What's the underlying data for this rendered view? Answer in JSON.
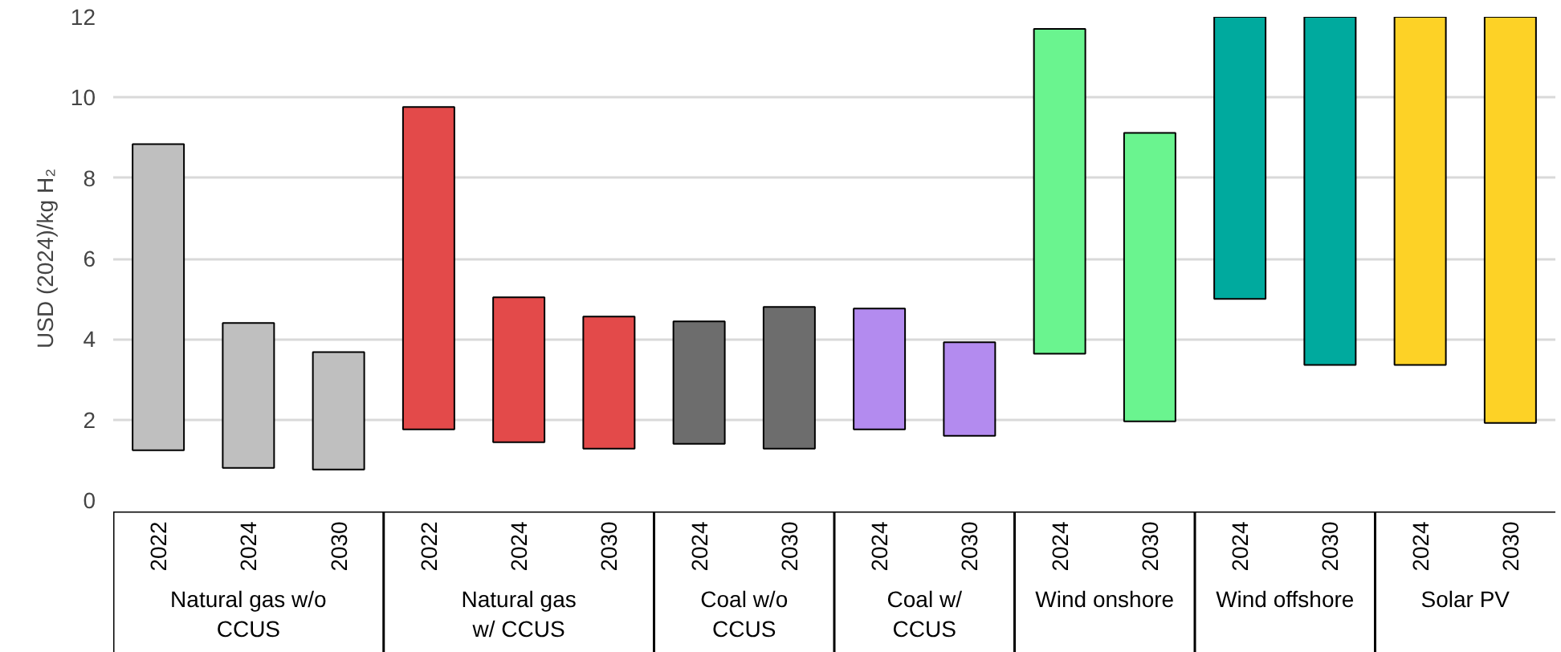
{
  "chart_data": {
    "type": "bar",
    "ylabel": "USD (2024)/kg H₂",
    "categories": [
      "2022",
      "2024",
      "2030",
      "2022",
      "2024",
      "2030",
      "2024",
      "2030",
      "2024",
      "2030",
      "2024",
      "2030",
      "2024",
      "2030",
      "2024",
      "2030"
    ],
    "series": [
      {
        "color": "#bfbfbf",
        "values": [
          7.6,
          3.6,
          2.92,
          null,
          null,
          null,
          null,
          null,
          null,
          null,
          null,
          null,
          null,
          null,
          null,
          null
        ],
        "base": [
          1.24,
          0.8,
          0.76,
          null,
          null,
          null,
          null,
          null,
          null,
          null,
          null,
          null,
          null,
          null,
          null,
          null
        ]
      },
      {
        "color": "#e34a4a",
        "values": [
          null,
          null,
          null,
          8.0,
          3.6,
          3.28,
          null,
          null,
          null,
          null,
          null,
          null,
          null,
          null,
          null,
          null
        ],
        "base": [
          null,
          null,
          null,
          1.76,
          1.44,
          1.28,
          null,
          null,
          null,
          null,
          null,
          null,
          null,
          null,
          null,
          null
        ]
      },
      {
        "color": "#6d6d6d",
        "values": [
          null,
          null,
          null,
          null,
          null,
          null,
          3.04,
          3.52,
          null,
          null,
          null,
          null,
          null,
          null,
          null,
          null
        ],
        "base": [
          null,
          null,
          null,
          null,
          null,
          null,
          1.4,
          1.28,
          null,
          null,
          null,
          null,
          null,
          null,
          null,
          null
        ]
      },
      {
        "color": "#b38bef",
        "values": [
          null,
          null,
          null,
          null,
          null,
          null,
          null,
          null,
          3.0,
          2.32,
          null,
          null,
          null,
          null,
          null,
          null
        ],
        "base": [
          null,
          null,
          null,
          null,
          null,
          null,
          null,
          null,
          1.76,
          1.6,
          null,
          null,
          null,
          null,
          null,
          null
        ]
      },
      {
        "color": "#6af48f",
        "values": [
          null,
          null,
          null,
          null,
          null,
          null,
          null,
          null,
          null,
          null,
          8.06,
          7.16,
          null,
          null,
          null,
          null
        ],
        "base": [
          null,
          null,
          null,
          null,
          null,
          null,
          null,
          null,
          null,
          null,
          3.64,
          1.96,
          null,
          null,
          null,
          null
        ]
      },
      {
        "color": "#00aa9e",
        "values": [
          null,
          null,
          null,
          null,
          null,
          null,
          null,
          null,
          null,
          null,
          null,
          null,
          7.0,
          8.64,
          null,
          null
        ],
        "base": [
          null,
          null,
          null,
          null,
          null,
          null,
          null,
          null,
          null,
          null,
          null,
          null,
          5.0,
          3.36,
          null,
          null
        ]
      },
      {
        "color": "#fdd226",
        "values": [
          null,
          null,
          null,
          null,
          null,
          null,
          null,
          null,
          null,
          null,
          null,
          null,
          null,
          null,
          8.64,
          10.08
        ],
        "base": [
          null,
          null,
          null,
          null,
          null,
          null,
          null,
          null,
          null,
          null,
          null,
          null,
          null,
          null,
          3.36,
          1.92
        ]
      }
    ],
    "annotations": [
      "Natural gas w/o\nCCUS",
      "Natural gas\nw/ CCUS",
      "Coal w/o\nCCUS",
      "Coal w/\nCCUS",
      "Wind onshore",
      "Wind offshore",
      "Solar PV"
    ],
    "ylim": [
      0,
      12
    ],
    "yticks": [
      0,
      2,
      4,
      6,
      8,
      10,
      12
    ],
    "grid": "y"
  }
}
